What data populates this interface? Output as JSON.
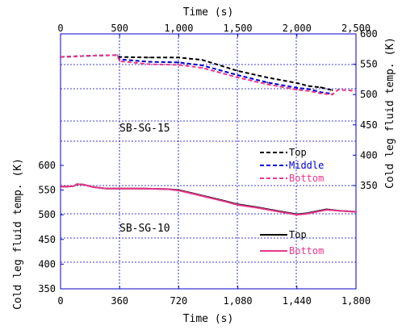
{
  "chart_data": [
    {
      "type": "line",
      "panel_label": "SB-SG-15",
      "x_axis_title": "Time (s)",
      "y_axis_title": "Cold leg fluid temp. (K)",
      "x_ticks": [
        0,
        500,
        1000,
        1500,
        2000,
        2500
      ],
      "x_tick_labels": [
        "0",
        "500",
        "1,000",
        "1,500",
        "2,000",
        "2,500"
      ],
      "y_ticks": [
        350,
        400,
        450,
        500,
        550,
        600
      ],
      "y_tick_labels": [
        "350",
        "400",
        "450",
        "500",
        "550",
        "600"
      ],
      "x_range": [
        0,
        2500
      ],
      "y_range": [
        350,
        600
      ],
      "grid": true,
      "legend_position": "right",
      "series": [
        {
          "name": "Top",
          "color": "#000000",
          "dash": "dashed",
          "x": [
            0,
            250,
            480,
            500,
            750,
            1000,
            1200,
            1500,
            1750,
            2000,
            2100,
            2200,
            2300
          ],
          "y": [
            562,
            564,
            565,
            562,
            561,
            561,
            557,
            539,
            528,
            519,
            514,
            512,
            507
          ]
        },
        {
          "name": "Middle",
          "color": "#0000cc",
          "dash": "dashed",
          "x": [
            0,
            250,
            480,
            500,
            750,
            1000,
            1200,
            1500,
            1750,
            2000,
            2100,
            2200,
            2300
          ],
          "y": [
            562,
            564,
            565,
            558,
            554,
            553,
            548,
            532,
            520,
            511,
            509,
            504,
            501
          ]
        },
        {
          "name": "Bottom",
          "color": "#e8388c",
          "dash": "dashed",
          "x": [
            0,
            250,
            480,
            500,
            750,
            1000,
            1200,
            1500,
            1750,
            2000,
            2100,
            2200,
            2300,
            2350,
            2500
          ],
          "y": [
            562,
            564,
            565,
            555,
            550,
            549,
            544,
            528,
            517,
            508,
            506,
            502,
            500,
            508,
            506
          ]
        }
      ]
    },
    {
      "type": "line",
      "panel_label": "SB-SG-10",
      "x_axis_title": "Time (s)",
      "y_axis_title": "Cold leg fluid temp. (K)",
      "x_ticks": [
        0,
        360,
        720,
        1080,
        1440,
        1800
      ],
      "x_tick_labels": [
        "0",
        "360",
        "720",
        "1,080",
        "1,440",
        "1,800"
      ],
      "y_ticks": [
        350,
        400,
        450,
        500,
        550,
        600
      ],
      "y_tick_labels": [
        "350",
        "400",
        "450",
        "500",
        "550",
        "600"
      ],
      "x_range": [
        0,
        1800
      ],
      "y_range": [
        350,
        600
      ],
      "grid": true,
      "legend_position": "right",
      "series": [
        {
          "name": "Top",
          "color": "#000000",
          "dash": "solid",
          "x": [
            0,
            40,
            80,
            100,
            140,
            200,
            280,
            360,
            500,
            650,
            720,
            800,
            900,
            1000,
            1080,
            1200,
            1300,
            1440,
            1500,
            1560,
            1620,
            1700,
            1800
          ],
          "y": [
            557,
            557,
            558,
            562,
            561,
            556,
            553,
            553,
            553,
            552,
            550,
            544,
            536,
            528,
            521,
            515,
            509,
            501,
            503,
            507,
            511,
            508,
            506
          ]
        },
        {
          "name": "Bottom",
          "color": "#e8388c",
          "dash": "solid",
          "x": [
            0,
            40,
            80,
            100,
            140,
            200,
            280,
            360,
            500,
            650,
            720,
            800,
            900,
            1000,
            1080,
            1200,
            1300,
            1440,
            1500,
            1560,
            1620,
            1700,
            1800
          ],
          "y": [
            557,
            557,
            558,
            562,
            561,
            556,
            553,
            553,
            553,
            552,
            549,
            543,
            535,
            527,
            520,
            514,
            508,
            500,
            502,
            506,
            510,
            508,
            506
          ]
        }
      ]
    }
  ]
}
